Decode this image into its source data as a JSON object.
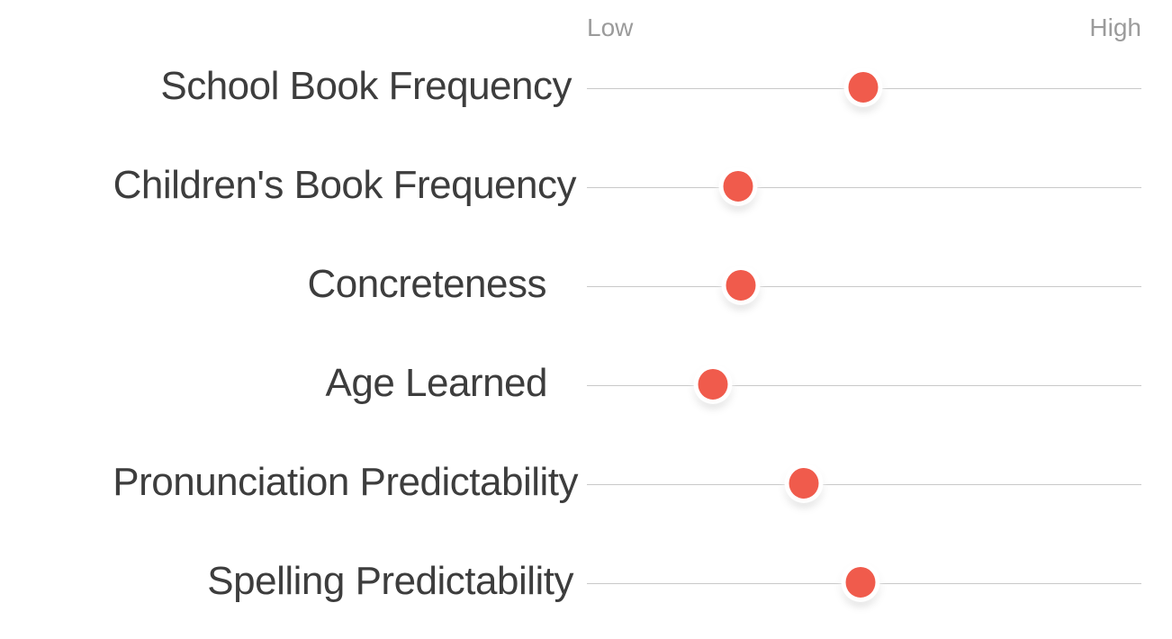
{
  "chart_data": {
    "type": "scatter",
    "variant": "dot-plot",
    "title": "",
    "axis": {
      "low_label": "Low",
      "high_label": "High",
      "xlim_note": "unlabeled relative scale from Low (0%) to High (100%)"
    },
    "rows": [
      {
        "label": "School Book Frequency",
        "value_pct": 49.8
      },
      {
        "label": "Children's Book Frequency",
        "value_pct": 27.3
      },
      {
        "label": "Concreteness",
        "value_pct": 27.8
      },
      {
        "label": "Age Learned",
        "value_pct": 22.7
      },
      {
        "label": "Pronunciation Predictability",
        "value_pct": 39.1
      },
      {
        "label": "Spelling Predictability",
        "value_pct": 49.4
      }
    ],
    "layout": {
      "legend": "none",
      "grid": "one horizontal rule per row"
    },
    "colors": {
      "dot": "#f05b4c",
      "line": "#c9c9c9",
      "row_label_text": "#3d3d3d",
      "axis_label_text": "#9b9b9b",
      "background": "#ffffff"
    }
  }
}
